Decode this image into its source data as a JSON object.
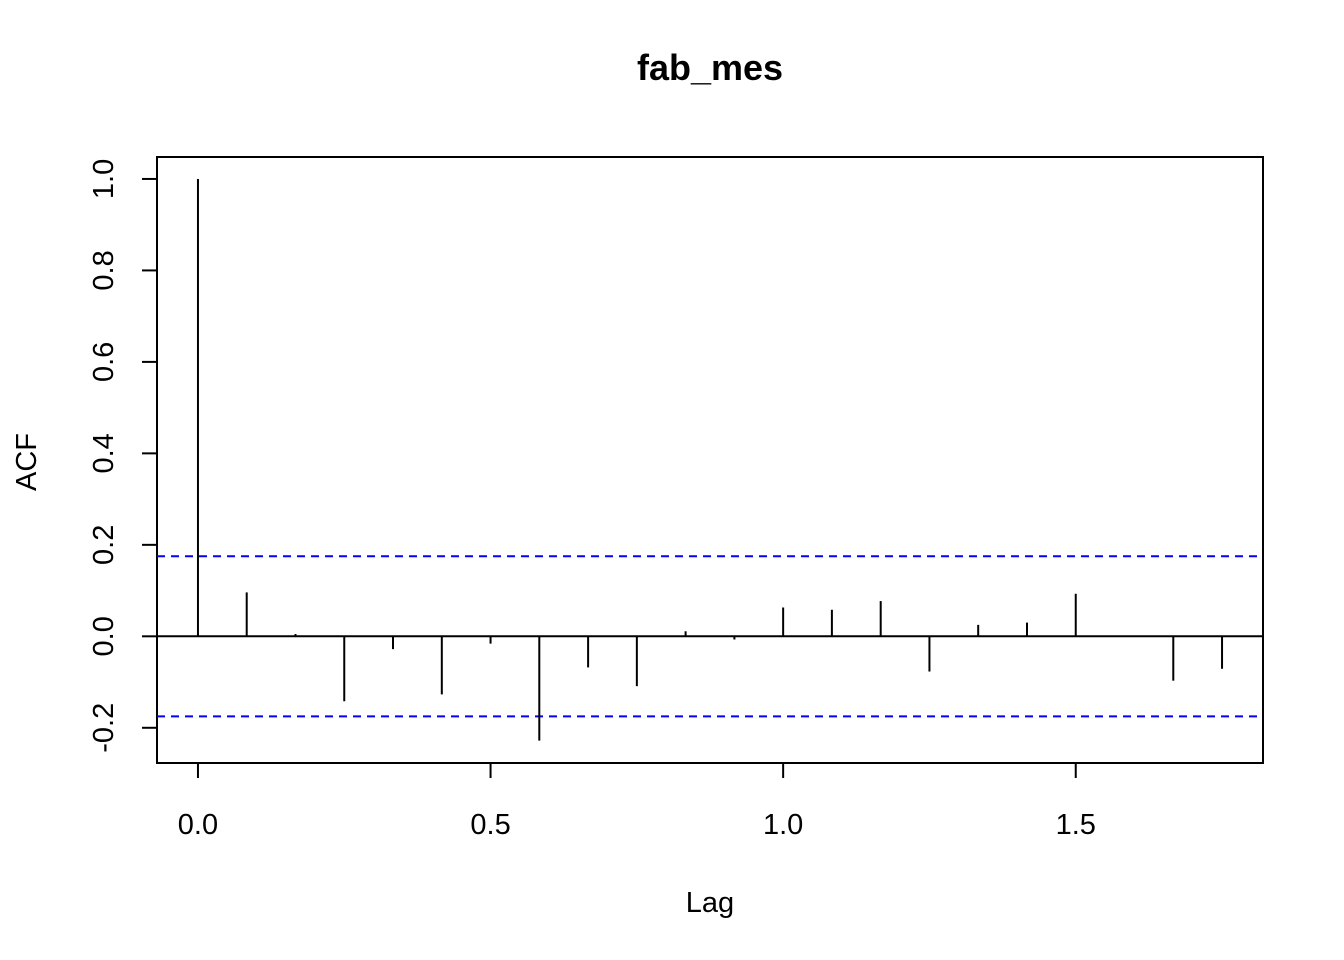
{
  "chart_data": {
    "type": "bar",
    "title": "fab_mes",
    "xlabel": "Lag",
    "ylabel": "ACF",
    "xlim": [
      -0.07,
      1.82
    ],
    "ylim": [
      -0.277,
      1.048
    ],
    "x_ticks": [
      0.0,
      0.5,
      1.0,
      1.5
    ],
    "x_tick_labels": [
      "0.0",
      "0.5",
      "1.0",
      "1.5"
    ],
    "y_ticks": [
      -0.2,
      0.0,
      0.2,
      0.4,
      0.6,
      0.8,
      1.0
    ],
    "y_tick_labels": [
      "-0.2",
      "0.0",
      "0.2",
      "0.4",
      "0.6",
      "0.8",
      "1.0"
    ],
    "lags": [
      0.0,
      0.0833,
      0.1667,
      0.25,
      0.3333,
      0.4167,
      0.5,
      0.5833,
      0.6667,
      0.75,
      0.8333,
      0.9167,
      1.0,
      1.0833,
      1.1667,
      1.25,
      1.3333,
      1.4167,
      1.5,
      1.5833,
      1.6667,
      1.75
    ],
    "acf": [
      1.0,
      0.096,
      0.005,
      -0.142,
      -0.028,
      -0.127,
      -0.016,
      -0.228,
      -0.068,
      -0.109,
      0.011,
      -0.007,
      0.063,
      0.058,
      0.077,
      -0.077,
      0.025,
      0.03,
      0.093,
      0.0,
      -0.097,
      -0.071
    ],
    "confidence_bound": 0.175,
    "colors": {
      "bars": "#000000",
      "confidence": "#0000ff",
      "frame": "#000000"
    }
  }
}
